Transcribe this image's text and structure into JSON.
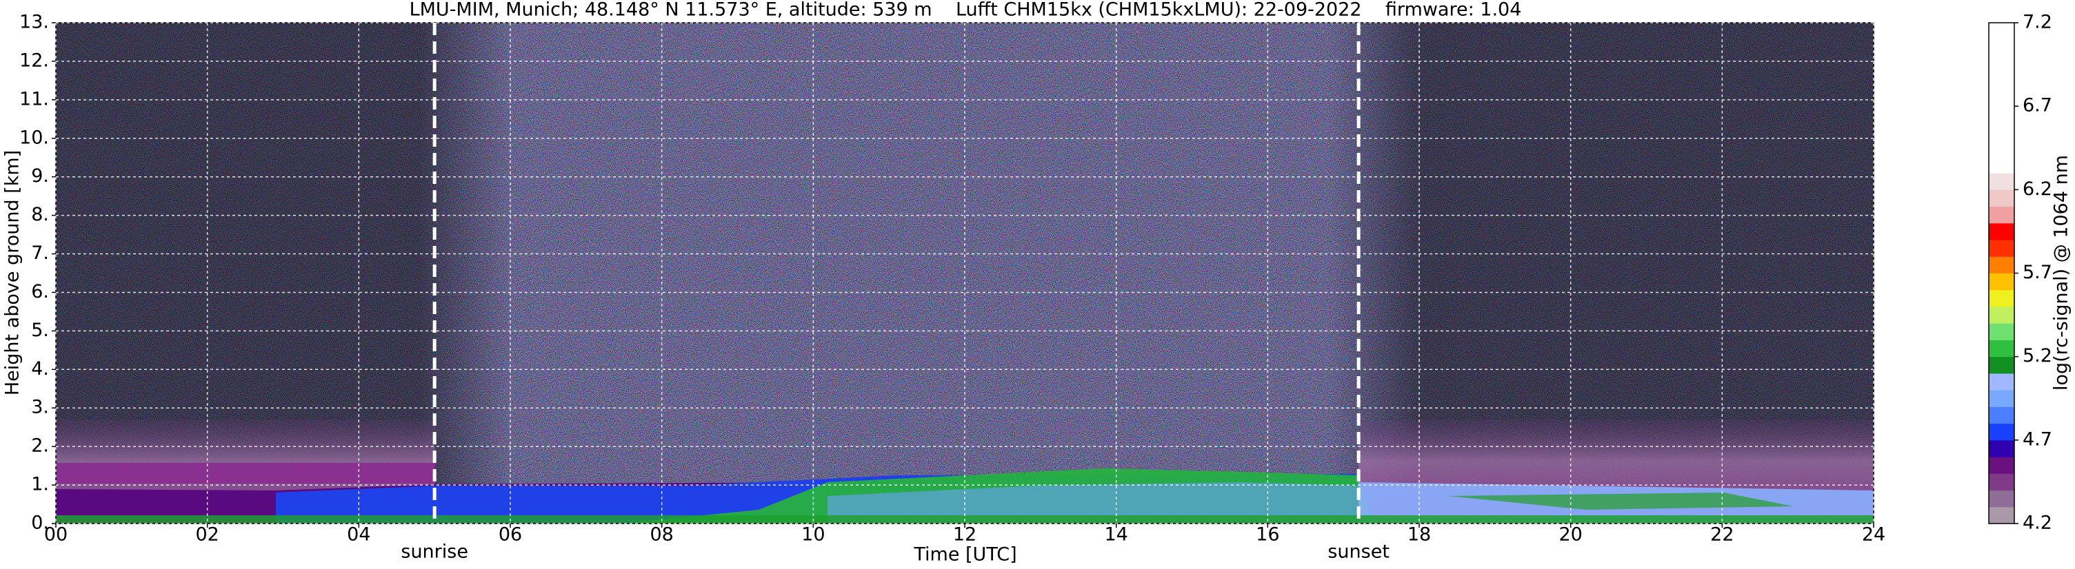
{
  "chart_data": {
    "type": "heatmap",
    "title": "LMU-MIM, Munich; 48.148° N 11.573° E, altitude: 539 m    Lufft CHM15kx (CHM15kxLMU): 22-09-2022    firmware: 1.04",
    "xlabel": "Time [UTC]",
    "ylabel": "Height above ground [km]",
    "xlim": [
      0,
      24
    ],
    "xticks": [
      {
        "value": 0,
        "label": "00"
      },
      {
        "value": 2,
        "label": "02"
      },
      {
        "value": 4,
        "label": "04"
      },
      {
        "value": 6,
        "label": "06"
      },
      {
        "value": 8,
        "label": "08"
      },
      10,
      12,
      14,
      16,
      18,
      20,
      22,
      24
    ],
    "ylim": [
      0,
      13
    ],
    "yticks": [
      {
        "value": 0,
        "label": "0."
      },
      {
        "value": 1,
        "label": "1."
      },
      {
        "value": 2,
        "label": "2."
      },
      {
        "value": 3,
        "label": "3."
      },
      {
        "value": 4,
        "label": "4."
      },
      {
        "value": 5,
        "label": "5."
      },
      {
        "value": 6,
        "label": "6."
      },
      {
        "value": 7,
        "label": "7."
      },
      {
        "value": 8,
        "label": "8."
      },
      {
        "value": 9,
        "label": "9."
      },
      {
        "value": 10,
        "label": "10."
      },
      {
        "value": 11,
        "label": "11."
      },
      {
        "value": 12,
        "label": "12."
      },
      {
        "value": 13,
        "label": "13."
      }
    ],
    "grid": true,
    "vlines": [
      {
        "x": 5.0,
        "label": "sunrise"
      },
      {
        "x": 17.2,
        "label": "sunset"
      }
    ],
    "colorbar": {
      "label": "log(rc-signal) @ 1064 nm",
      "clim": [
        4.2,
        7.2
      ],
      "ticks": [
        4.2,
        4.7,
        5.2,
        5.7,
        6.2,
        6.7,
        7.2
      ],
      "colors": [
        "#a898a8",
        "#906c98",
        "#803a88",
        "#6a1080",
        "#3000b0",
        "#1840ff",
        "#4a80ff",
        "#78a8ff",
        "#a0b8ff",
        "#109020",
        "#30c040",
        "#70e070",
        "#c0f060",
        "#f0f020",
        "#ffc000",
        "#ff8000",
        "#ff3000",
        "#ff0000",
        "#f0a0a0",
        "#f0c8c8",
        "#f0e0e0",
        "#ffffff",
        "#ffffff",
        "#ffffff",
        "#ffffff",
        "#ffffff",
        "#ffffff",
        "#ffffff",
        "#ffffff",
        "#ffffff"
      ]
    }
  }
}
